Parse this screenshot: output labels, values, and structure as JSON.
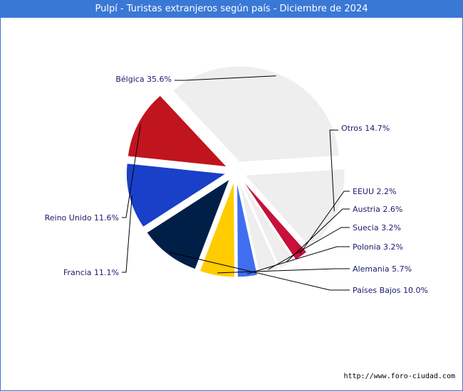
{
  "chart_data": {
    "type": "pie",
    "title": "Pulpí - Turistas extranjeros según país - Diciembre de 2024",
    "slices": [
      {
        "name": "Bélgica",
        "value": 35.6,
        "label": "Bélgica 35.6%",
        "color": "#eeeeee"
      },
      {
        "name": "Otros",
        "value": 14.7,
        "label": "Otros 14.7%",
        "color": "#eeeeee"
      },
      {
        "name": "EEUU",
        "value": 2.2,
        "label": "EEUU 2.2%",
        "color": "#c8103a"
      },
      {
        "name": "Austria",
        "value": 2.6,
        "label": "Austria 2.6%",
        "color": "#eeeeee"
      },
      {
        "name": "Suecia",
        "value": 3.2,
        "label": "Suecia 3.2%",
        "color": "#eeeeee"
      },
      {
        "name": "Polonia",
        "value": 3.2,
        "label": "Polonia 3.2%",
        "color": "#3f6ff0"
      },
      {
        "name": "Alemania",
        "value": 5.7,
        "label": "Alemania 5.7%",
        "color": "#ffcc00"
      },
      {
        "name": "Países Bajos",
        "value": 10.0,
        "label": "Países Bajos 10.0%",
        "color": "#001f47"
      },
      {
        "name": "Francia",
        "value": 11.1,
        "label": "Francia 11.1%",
        "color": "#1a3fc8"
      },
      {
        "name": "Reino Unido",
        "value": 11.6,
        "label": "Reino Unido 11.6%",
        "color": "#c0141f"
      }
    ]
  },
  "footer": {
    "url": "http://www.foro-ciudad.com"
  }
}
